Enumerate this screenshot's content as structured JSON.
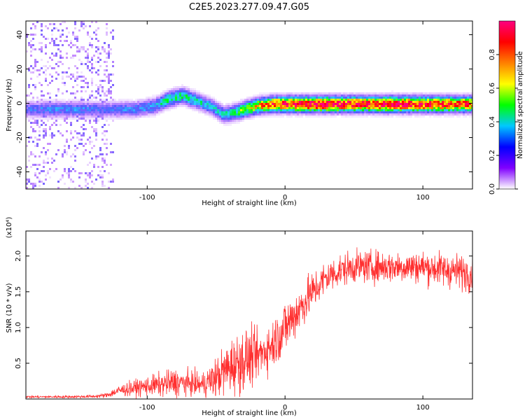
{
  "title": "C2E5.2023.277.09.47.G05",
  "chart_data": [
    {
      "type": "heatmap",
      "xlabel": "Height of straight line (km)",
      "ylabel": "Frequency (Hz)",
      "xlim": [
        -188,
        136
      ],
      "ylim": [
        -50,
        48
      ],
      "x_ticks": [
        -100,
        0,
        100
      ],
      "y_ticks": [
        -40,
        -20,
        0,
        20,
        40
      ],
      "grid": false,
      "colorbar": {
        "label": "Normalized spectral amplitude",
        "range": [
          0.0,
          1.0
        ],
        "ticks": [
          0.0,
          0.2,
          0.4,
          0.6,
          0.8
        ],
        "colormap": [
          "#ffffff",
          "#8000ff",
          "#0000ff",
          "#00c8ff",
          "#00ff00",
          "#ffff00",
          "#ff8000",
          "#ff0000",
          "#ff0080"
        ]
      },
      "ridge": {
        "description_free": true,
        "x": [
          -188,
          -170,
          -150,
          -130,
          -110,
          -95,
          -85,
          -75,
          -65,
          -55,
          -45,
          -38,
          -30,
          -20,
          -10,
          0,
          20,
          40,
          60,
          80,
          100,
          120,
          136
        ],
        "center_hz": [
          -3,
          -3,
          -3,
          -3,
          -3,
          -1,
          3,
          5,
          2,
          -1,
          -6,
          -5,
          -3,
          -1,
          0,
          0,
          0,
          0,
          0,
          0,
          0,
          0,
          0
        ],
        "peak_amplitude": [
          0.25,
          0.3,
          0.3,
          0.25,
          0.3,
          0.35,
          0.45,
          0.45,
          0.4,
          0.35,
          0.4,
          0.45,
          0.55,
          0.7,
          0.8,
          0.9,
          0.95,
          0.95,
          0.9,
          0.95,
          0.9,
          0.85,
          0.8
        ]
      },
      "scatter_region": {
        "x_range": [
          -188,
          -125
        ],
        "freq_range": [
          -50,
          48
        ]
      }
    },
    {
      "type": "line",
      "xlabel": "Height of straight line (km)",
      "ylabel": "SNR (10 * v/v)",
      "y_multiplier": "(x10⁴)",
      "xlim": [
        -188,
        136
      ],
      "ylim": [
        0,
        23500
      ],
      "x_ticks": [
        -100,
        0,
        100
      ],
      "y_tick_labels": [
        "0.5",
        "1.0",
        "1.5",
        "2.0"
      ],
      "y_ticks": [
        5000,
        10000,
        15000,
        20000
      ],
      "grid": false,
      "series": [
        {
          "color": "#ff3030",
          "envelope_x": [
            -188,
            -160,
            -140,
            -130,
            -120,
            -110,
            -100,
            -90,
            -80,
            -70,
            -60,
            -50,
            -40,
            -30,
            -20,
            -10,
            0,
            10,
            20,
            30,
            40,
            50,
            60,
            80,
            100,
            120,
            136
          ],
          "envelope_mean": [
            300,
            300,
            350,
            500,
            1200,
            1500,
            1800,
            2000,
            2300,
            2200,
            2000,
            3000,
            4500,
            5500,
            6000,
            7500,
            10000,
            12500,
            15000,
            17000,
            18000,
            18500,
            18500,
            18500,
            18500,
            18000,
            17500
          ],
          "envelope_noise": [
            150,
            150,
            200,
            300,
            700,
            1000,
            1200,
            1500,
            1800,
            1500,
            1500,
            2500,
            3500,
            4000,
            3000,
            3000,
            3500,
            3000,
            2500,
            2200,
            2000,
            2000,
            2000,
            2000,
            2000,
            2200,
            2200
          ]
        }
      ]
    }
  ]
}
